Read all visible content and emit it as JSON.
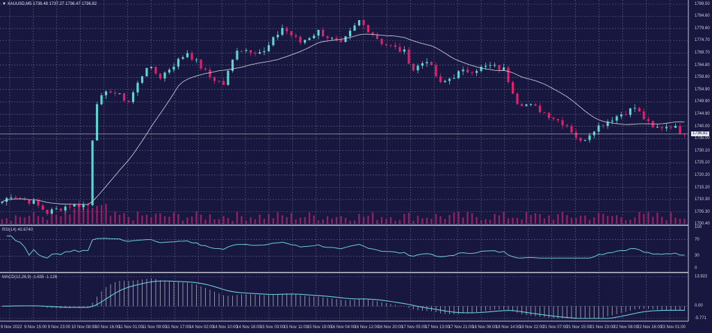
{
  "header": {
    "symbol_icon": "triangle-down-icon",
    "title": "XAUUSD,M5  1736.48 1737.27 1736.47 1736.82"
  },
  "price_axis": [
    "1789.50",
    "1784.60",
    "1779.60",
    "1774.70",
    "1769.70",
    "1764.80",
    "1759.80",
    "1754.90",
    "1749.90",
    "1744.90",
    "1740.00",
    "1735.00",
    "1730.10",
    "1725.10",
    "1720.20",
    "1715.20",
    "1710.30",
    "1705.30",
    "1700.40"
  ],
  "current_price": "1736.82",
  "rsi": {
    "label": "RSI(14) 40.6740",
    "axis": [
      "100",
      "70",
      "30",
      "0"
    ]
  },
  "macd": {
    "label": "MACD(12,26,9) -1.635 -1.126",
    "axis": [
      "13.922",
      "0.00",
      "-5.771"
    ]
  },
  "time_axis": [
    "9 Nov 2022",
    "9 Nov 15:00",
    "9 Nov 23:00",
    "10 Nov 08:00",
    "10 Nov 16:00",
    "11 Nov 01:00",
    "11 Nov 09:00",
    "11 Nov 17:00",
    "14 Nov 02:00",
    "14 Nov 10:00",
    "14 Nov 18:00",
    "15 Nov 03:00",
    "15 Nov 11:00",
    "15 Nov 19:00",
    "16 Nov 04:00",
    "16 Nov 12:00",
    "16 Nov 20:00",
    "17 Nov 05:00",
    "17 Nov 13:00",
    "17 Nov 21:00",
    "18 Nov 06:00",
    "18 Nov 14:00",
    "18 Nov 22:00",
    "21 Nov 07:00",
    "21 Nov 15:00",
    "21 Nov 23:00",
    "22 Nov 08:00",
    "22 Nov 16:00",
    "23 Nov 01:00"
  ],
  "colors": {
    "background": "#17173f",
    "bull": "#5fd6d2",
    "bear": "#e0226e",
    "ma": "#c8c8d8",
    "grid": "#6a6a8a",
    "volume": "#b0246e",
    "rsi_line": "#6cd0e0",
    "macd_signal": "#6cd0e0",
    "macd_hist": "#c8c8d8"
  },
  "chart_data": {
    "type": "candlestick",
    "symbol": "XAUUSD",
    "timeframe": "M5",
    "ylim": [
      1700.4,
      1789.5
    ],
    "bars": 152,
    "price_path": [
      [
        0,
        1709.4
      ],
      [
        2,
        1712
      ],
      [
        7,
        1709
      ],
      [
        10,
        1705
      ],
      [
        15,
        1708
      ],
      [
        19,
        1708
      ],
      [
        20,
        1735
      ],
      [
        21,
        1750
      ],
      [
        24,
        1754.5
      ],
      [
        28,
        1750
      ],
      [
        32,
        1764.4
      ],
      [
        35,
        1760
      ],
      [
        41,
        1770
      ],
      [
        46,
        1760
      ],
      [
        49,
        1757
      ],
      [
        52,
        1771.5
      ],
      [
        58,
        1770
      ],
      [
        62,
        1780
      ],
      [
        66,
        1774
      ],
      [
        70,
        1778.5
      ],
      [
        75,
        1773
      ],
      [
        79,
        1782.7
      ],
      [
        84,
        1774
      ],
      [
        89,
        1770
      ],
      [
        91,
        1763
      ],
      [
        94,
        1767
      ],
      [
        97,
        1757
      ],
      [
        101,
        1761.6
      ],
      [
        108,
        1764.4
      ],
      [
        111,
        1763
      ],
      [
        114,
        1750
      ],
      [
        118,
        1747.5
      ],
      [
        125,
        1740.4
      ],
      [
        128,
        1733.4
      ],
      [
        131,
        1739
      ],
      [
        135,
        1743.2
      ],
      [
        140,
        1747.5
      ],
      [
        144,
        1739
      ],
      [
        148,
        1740.4
      ],
      [
        151,
        1736.8
      ]
    ],
    "ma_period": 20,
    "rsi_period": 14,
    "rsi_range": [
      0,
      100
    ],
    "macd_params": [
      12,
      26,
      9
    ],
    "macd_range": [
      -5.771,
      13.922
    ]
  }
}
